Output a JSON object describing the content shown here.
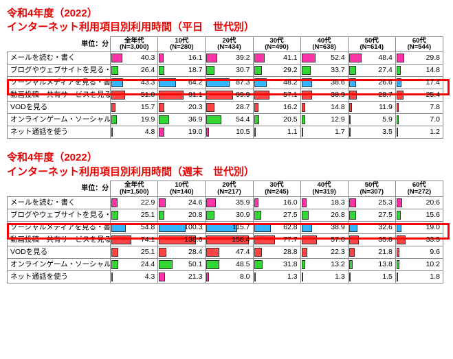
{
  "colors": {
    "title": "#e60000",
    "highlight": "#ff0000",
    "bars": [
      "#ff33a8",
      "#33d633",
      "#33b5ff",
      "#ff4444",
      "#ff4444",
      "#33d633",
      "#ff33a8"
    ]
  },
  "unit_label": "単位：分",
  "bar_scale_divisor": 160,
  "tables": [
    {
      "title_lines": [
        "令和4年度（2022）",
        "インターネット利用項目別利用時間（平日　世代別）"
      ],
      "columns": [
        {
          "l1": "全年代",
          "l2": "(N=3,000)"
        },
        {
          "l1": "10代",
          "l2": "(N=280)"
        },
        {
          "l1": "20代",
          "l2": "(N=434)"
        },
        {
          "l1": "30代",
          "l2": "(N=490)"
        },
        {
          "l1": "40代",
          "l2": "(N=638)"
        },
        {
          "l1": "50代",
          "l2": "(N=614)"
        },
        {
          "l1": "60代",
          "l2": "(N=544)"
        }
      ],
      "rows": [
        {
          "label": "メールを読む・書く",
          "vals": [
            40.3,
            16.1,
            39.2,
            41.1,
            52.4,
            48.4,
            29.8
          ]
        },
        {
          "label": "ブログやウェブサイトを見る・書く",
          "vals": [
            26.4,
            18.7,
            30.7,
            29.2,
            33.7,
            27.4,
            14.8
          ]
        },
        {
          "label": "ソーシャルメディアを見る・書く",
          "vals": [
            43.3,
            64.2,
            87.3,
            48.2,
            38.6,
            26.6,
            17.4
          ],
          "highlight": true
        },
        {
          "label": "動画投稿・共有サービスを見る",
          "vals": [
            51.0,
            91.1,
            99.9,
            57.1,
            38.9,
            28.7,
            25.4
          ]
        },
        {
          "label": "VODを見る",
          "vals": [
            15.7,
            20.3,
            28.7,
            16.2,
            14.8,
            11.9,
            7.8
          ]
        },
        {
          "label": "オンラインゲーム・ソーシャルゲームをする",
          "vals": [
            19.9,
            36.9,
            54.4,
            20.5,
            12.9,
            5.9,
            7.0
          ]
        },
        {
          "label": "ネット通話を使う",
          "vals": [
            4.8,
            19.0,
            10.5,
            1.1,
            1.7,
            3.5,
            1.2
          ]
        }
      ]
    },
    {
      "title_lines": [
        "令和4年度（2022）",
        "インターネット利用項目別利用時間（週末　世代別）"
      ],
      "columns": [
        {
          "l1": "全年代",
          "l2": "(N=1,500)"
        },
        {
          "l1": "10代",
          "l2": "(N=140)"
        },
        {
          "l1": "20代",
          "l2": "(N=217)"
        },
        {
          "l1": "30代",
          "l2": "(N=245)"
        },
        {
          "l1": "40代",
          "l2": "(N=319)"
        },
        {
          "l1": "50代",
          "l2": "(N=307)"
        },
        {
          "l1": "60代",
          "l2": "(N=272)"
        }
      ],
      "rows": [
        {
          "label": "メールを読む・書く",
          "vals": [
            22.9,
            24.6,
            35.9,
            16.0,
            18.3,
            25.3,
            20.6
          ]
        },
        {
          "label": "ブログやウェブサイトを見る・書く",
          "vals": [
            25.1,
            20.8,
            30.9,
            27.5,
            26.8,
            27.5,
            15.6
          ]
        },
        {
          "label": "ソーシャルメディアを見る・書く",
          "vals": [
            54.8,
            100.3,
            115.7,
            62.8,
            38.9,
            32.6,
            19.0
          ],
          "highlight": true
        },
        {
          "label": "動画投稿・共有サービスを見る",
          "vals": [
            74.1,
            138.6,
            158.4,
            77.7,
            57.0,
            35.8,
            33.5
          ]
        },
        {
          "label": "VODを見る",
          "vals": [
            25.1,
            28.4,
            47.4,
            28.8,
            22.3,
            21.8,
            9.6
          ]
        },
        {
          "label": "オンラインゲーム・ソーシャルゲームをする",
          "vals": [
            24.4,
            50.1,
            48.5,
            31.8,
            13.2,
            13.8,
            10.2
          ]
        },
        {
          "label": "ネット通話を使う",
          "vals": [
            4.3,
            21.3,
            8.0,
            1.3,
            1.3,
            1.5,
            1.8
          ]
        }
      ]
    }
  ]
}
